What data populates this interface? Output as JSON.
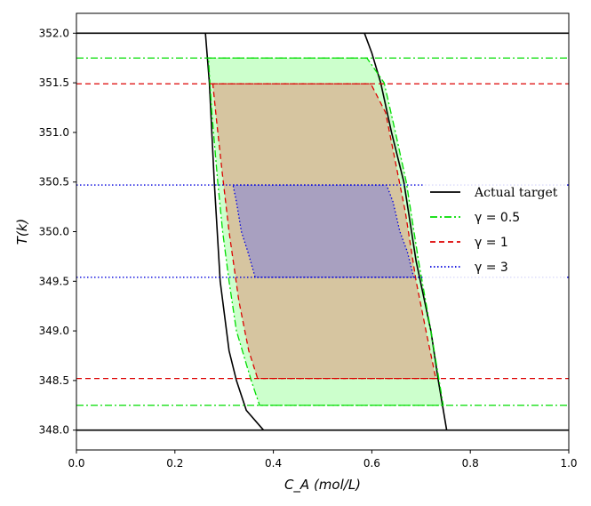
{
  "chart_data": {
    "type": "line",
    "xlabel": "C_A (mol/L)",
    "ylabel": "T(k)",
    "xlim": [
      0.0,
      1.0
    ],
    "ylim": [
      347.8,
      352.2
    ],
    "x_ticks": [
      "0.0",
      "0.2",
      "0.4",
      "0.6",
      "0.8",
      "1.0"
    ],
    "y_ticks": [
      "348.0",
      "348.5",
      "349.0",
      "349.5",
      "350.0",
      "350.5",
      "351.0",
      "351.5",
      "352.0"
    ],
    "legend": {
      "placement": "center-right"
    },
    "series": [
      {
        "name": "Actual target",
        "color": "#000000",
        "style": "solid",
        "fill": null,
        "hlines": [
          348.0,
          352.0
        ],
        "left_boundary": [
          [
            0.262,
            352.0
          ],
          [
            0.27,
            351.5
          ],
          [
            0.28,
            350.5
          ],
          [
            0.292,
            349.5
          ],
          [
            0.31,
            348.8
          ],
          [
            0.325,
            348.5
          ],
          [
            0.345,
            348.2
          ],
          [
            0.38,
            348.0
          ]
        ],
        "right_boundary": [
          [
            0.585,
            352.0
          ],
          [
            0.6,
            351.8
          ],
          [
            0.618,
            351.5
          ],
          [
            0.64,
            351.0
          ],
          [
            0.665,
            350.5
          ],
          [
            0.69,
            349.7
          ],
          [
            0.72,
            349.0
          ],
          [
            0.735,
            348.5
          ],
          [
            0.752,
            348.0
          ]
        ]
      },
      {
        "name": "γ = 0.5",
        "color": "#00dd00",
        "style": "dashdot",
        "fill": "#ccffcc",
        "hlines": [
          348.25,
          351.75
        ],
        "polygon": [
          [
            0.268,
            351.75
          ],
          [
            0.59,
            351.75
          ],
          [
            0.625,
            351.5
          ],
          [
            0.648,
            351.0
          ],
          [
            0.67,
            350.5
          ],
          [
            0.695,
            349.7
          ],
          [
            0.72,
            349.0
          ],
          [
            0.745,
            348.25
          ],
          [
            0.372,
            348.25
          ],
          [
            0.355,
            348.5
          ],
          [
            0.325,
            349.0
          ],
          [
            0.31,
            349.5
          ],
          [
            0.297,
            350.0
          ],
          [
            0.287,
            350.5
          ],
          [
            0.275,
            351.2
          ]
        ]
      },
      {
        "name": "γ = 1",
        "color": "#dd0000",
        "style": "dashed",
        "fill": "#d6c5a0",
        "hlines": [
          348.52,
          351.49
        ],
        "polygon": [
          [
            0.277,
            351.49
          ],
          [
            0.598,
            351.49
          ],
          [
            0.628,
            351.2
          ],
          [
            0.648,
            350.7
          ],
          [
            0.668,
            350.2
          ],
          [
            0.69,
            349.5
          ],
          [
            0.71,
            349.0
          ],
          [
            0.73,
            348.52
          ],
          [
            0.368,
            348.52
          ],
          [
            0.35,
            348.8
          ],
          [
            0.33,
            349.3
          ],
          [
            0.31,
            350.0
          ],
          [
            0.296,
            350.6
          ],
          [
            0.285,
            351.1
          ]
        ]
      },
      {
        "name": "γ = 3",
        "color": "#0000dd",
        "style": "dotted",
        "fill": "#a8a0c0",
        "hlines": [
          349.54,
          350.47
        ],
        "polygon": [
          [
            0.318,
            350.47
          ],
          [
            0.63,
            350.47
          ],
          [
            0.643,
            350.3
          ],
          [
            0.657,
            350.0
          ],
          [
            0.672,
            349.8
          ],
          [
            0.685,
            349.54
          ],
          [
            0.363,
            349.54
          ],
          [
            0.348,
            349.8
          ],
          [
            0.335,
            350.0
          ],
          [
            0.325,
            350.3
          ]
        ]
      }
    ]
  }
}
